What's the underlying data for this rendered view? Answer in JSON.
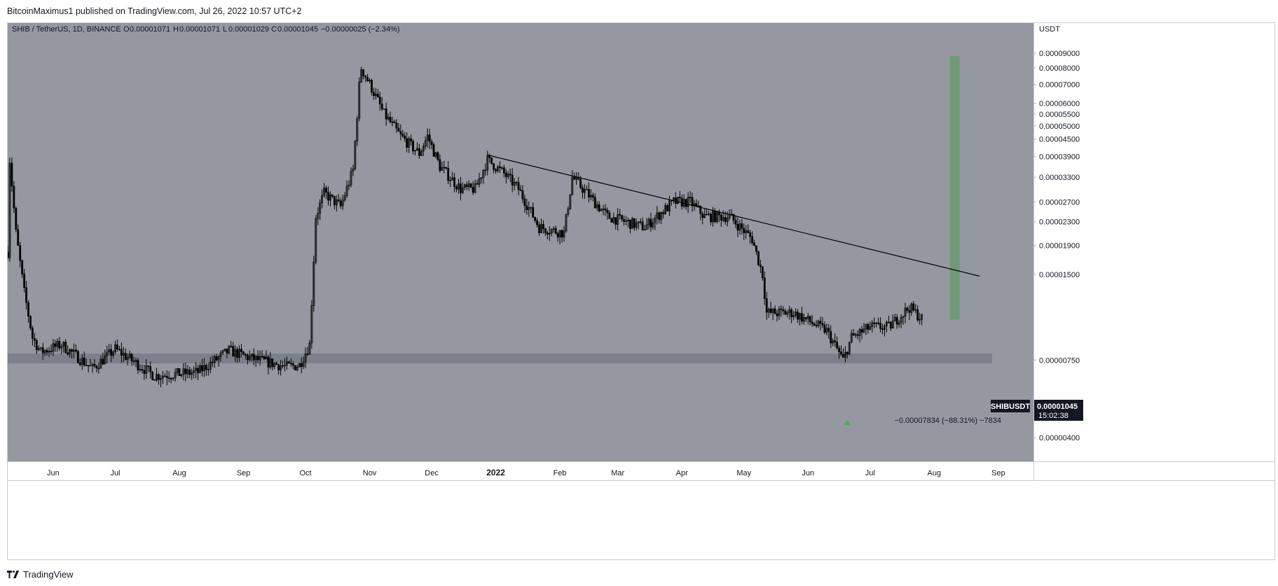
{
  "header": {
    "published_text": "BitcoinMaximus1 published on TradingView.com, Jul 26, 2022 10:57 UTC+2"
  },
  "footer": {
    "brand": "TradingView",
    "logo_icon": "tradingview-logo-icon"
  },
  "colors": {
    "plot_bg": "#9598a1",
    "candle": "#000000",
    "trendline": "#000000",
    "support_band": "#787b86",
    "projection_bar": "#6f9a76",
    "arrow": "#4caf50",
    "price_tag_bg": "#131722"
  },
  "chart_data": {
    "type": "candlestick",
    "title": "SHIB / TetherUS, 1D, BINANCE",
    "legend": {
      "o_label": "O",
      "o_value": "0.00001071",
      "h_label": "H",
      "h_value": "0.00001071",
      "l_label": "L",
      "l_value": "0.00001029",
      "c_label": "C",
      "c_value": "0.00001045",
      "change": "−0.00000025 (−2.34%)"
    },
    "y_unit": "USDT",
    "y_scale": "log",
    "ylim": [
      3.3e-06,
      0.000115
    ],
    "y_ticks": [
      {
        "value": 9e-05,
        "label": "0.00009000"
      },
      {
        "value": 8e-05,
        "label": "0.00008000"
      },
      {
        "value": 7e-05,
        "label": "0.00007000"
      },
      {
        "value": 6e-05,
        "label": "0.00006000"
      },
      {
        "value": 5.5e-05,
        "label": "0.00005500"
      },
      {
        "value": 5e-05,
        "label": "0.00005000"
      },
      {
        "value": 4.5e-05,
        "label": "0.00004500"
      },
      {
        "value": 3.9e-05,
        "label": "0.00003900"
      },
      {
        "value": 3.3e-05,
        "label": "0.00003300"
      },
      {
        "value": 2.7e-05,
        "label": "0.00002700"
      },
      {
        "value": 2.3e-05,
        "label": "0.00002300"
      },
      {
        "value": 1.9e-05,
        "label": "0.00001900"
      },
      {
        "value": 1.5e-05,
        "label": "0.00001500"
      },
      {
        "value": 7.5e-06,
        "label": "0.00000750"
      },
      {
        "value": 4e-06,
        "label": "0.00000400"
      }
    ],
    "x_range": [
      "2021-05-10",
      "2022-09-18"
    ],
    "x_ticks": [
      {
        "date": "2021-06-01",
        "label": "Jun"
      },
      {
        "date": "2021-07-01",
        "label": "Jul"
      },
      {
        "date": "2021-08-01",
        "label": "Aug"
      },
      {
        "date": "2021-09-01",
        "label": "Sep"
      },
      {
        "date": "2021-10-01",
        "label": "Oct"
      },
      {
        "date": "2021-11-01",
        "label": "Nov"
      },
      {
        "date": "2021-12-01",
        "label": "Dec"
      },
      {
        "date": "2022-01-01",
        "label": "2022"
      },
      {
        "date": "2022-02-01",
        "label": "Feb"
      },
      {
        "date": "2022-03-01",
        "label": "Mar"
      },
      {
        "date": "2022-04-01",
        "label": "Apr"
      },
      {
        "date": "2022-05-01",
        "label": "May"
      },
      {
        "date": "2022-06-01",
        "label": "Jun"
      },
      {
        "date": "2022-07-01",
        "label": "Jul"
      },
      {
        "date": "2022-08-01",
        "label": "Aug"
      },
      {
        "date": "2022-09-01",
        "label": "Sep"
      }
    ],
    "series": [
      {
        "name": "SHIBUSDT",
        "approx_close_path": [
          {
            "date": "2021-05-10",
            "value": 1.8e-05
          },
          {
            "date": "2021-05-11",
            "value": 3.8e-05
          },
          {
            "date": "2021-05-14",
            "value": 2.1e-05
          },
          {
            "date": "2021-05-18",
            "value": 1.3e-05
          },
          {
            "date": "2021-05-22",
            "value": 9e-06
          },
          {
            "date": "2021-05-26",
            "value": 8e-06
          },
          {
            "date": "2021-06-05",
            "value": 8.5e-06
          },
          {
            "date": "2021-06-20",
            "value": 7e-06
          },
          {
            "date": "2021-07-01",
            "value": 8.2e-06
          },
          {
            "date": "2021-07-20",
            "value": 6.6e-06
          },
          {
            "date": "2021-08-10",
            "value": 6.8e-06
          },
          {
            "date": "2021-08-25",
            "value": 8.1e-06
          },
          {
            "date": "2021-09-05",
            "value": 7.6e-06
          },
          {
            "date": "2021-09-22",
            "value": 7.1e-06
          },
          {
            "date": "2021-09-28",
            "value": 7.2e-06
          },
          {
            "date": "2021-10-03",
            "value": 8.5e-06
          },
          {
            "date": "2021-10-06",
            "value": 2.4e-05
          },
          {
            "date": "2021-10-10",
            "value": 2.9e-05
          },
          {
            "date": "2021-10-18",
            "value": 2.6e-05
          },
          {
            "date": "2021-10-24",
            "value": 3.5e-05
          },
          {
            "date": "2021-10-27",
            "value": 6.9e-05
          },
          {
            "date": "2021-10-28",
            "value": 8e-05
          },
          {
            "date": "2021-11-02",
            "value": 6.8e-05
          },
          {
            "date": "2021-11-08",
            "value": 5.5e-05
          },
          {
            "date": "2021-11-16",
            "value": 4.6e-05
          },
          {
            "date": "2021-11-25",
            "value": 4e-05
          },
          {
            "date": "2021-11-29",
            "value": 4.6e-05
          },
          {
            "date": "2021-12-05",
            "value": 3.6e-05
          },
          {
            "date": "2021-12-15",
            "value": 3e-05
          },
          {
            "date": "2021-12-22",
            "value": 3e-05
          },
          {
            "date": "2021-12-28",
            "value": 3.8e-05
          },
          {
            "date": "2022-01-05",
            "value": 3.4e-05
          },
          {
            "date": "2022-01-12",
            "value": 3e-05
          },
          {
            "date": "2022-01-22",
            "value": 2.2e-05
          },
          {
            "date": "2022-02-03",
            "value": 2.1e-05
          },
          {
            "date": "2022-02-07",
            "value": 3.3e-05
          },
          {
            "date": "2022-02-14",
            "value": 2.9e-05
          },
          {
            "date": "2022-02-24",
            "value": 2.4e-05
          },
          {
            "date": "2022-03-14",
            "value": 2.2e-05
          },
          {
            "date": "2022-03-28",
            "value": 2.7e-05
          },
          {
            "date": "2022-04-05",
            "value": 2.7e-05
          },
          {
            "date": "2022-04-12",
            "value": 2.4e-05
          },
          {
            "date": "2022-04-24",
            "value": 2.4e-05
          },
          {
            "date": "2022-05-05",
            "value": 2e-05
          },
          {
            "date": "2022-05-10",
            "value": 1.5e-05
          },
          {
            "date": "2022-05-12",
            "value": 1.1e-05
          },
          {
            "date": "2022-05-25",
            "value": 1.1e-05
          },
          {
            "date": "2022-06-10",
            "value": 9.5e-06
          },
          {
            "date": "2022-06-18",
            "value": 7.5e-06
          },
          {
            "date": "2022-06-22",
            "value": 9e-06
          },
          {
            "date": "2022-07-01",
            "value": 9.8e-06
          },
          {
            "date": "2022-07-10",
            "value": 9.8e-06
          },
          {
            "date": "2022-07-20",
            "value": 1.15e-05
          },
          {
            "date": "2022-07-26",
            "value": 1.05e-05
          }
        ]
      }
    ],
    "trendline": {
      "start": {
        "date": "2021-12-28",
        "value": 3.95e-05
      },
      "end": {
        "date": "2022-08-23",
        "value": 1.48e-05
      }
    },
    "support_band": {
      "from_date": "2021-05-10",
      "to_date": "2022-08-29",
      "low": 7.3e-06,
      "high": 7.9e-06
    },
    "projection_bar": {
      "date": "2022-08-11",
      "low": 1.04e-05,
      "high": 8.8e-05
    },
    "up_arrow": {
      "date": "2022-06-20",
      "value": 4.5e-06
    },
    "measurement_label": "−0.00007834 (−88.31%) −7834",
    "last_price": {
      "symbol_label": "SHIBUSDT",
      "value": 1.045e-05,
      "value_label": "0.00001045",
      "countdown": "15:02:38"
    }
  }
}
